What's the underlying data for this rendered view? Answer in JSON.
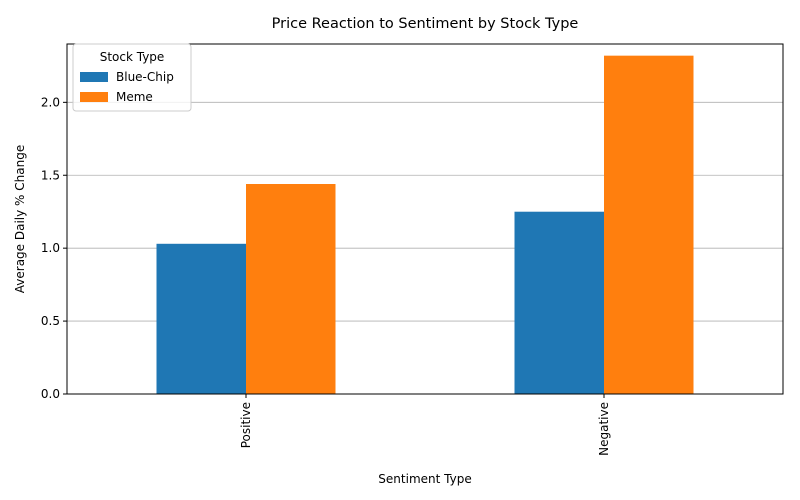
{
  "chart_data": {
    "type": "bar",
    "title": "Price Reaction to Sentiment by Stock Type",
    "xlabel": "Sentiment Type",
    "ylabel": "Average Daily % Change",
    "categories": [
      "Positive",
      "Negative"
    ],
    "series": [
      {
        "name": "Blue-Chip",
        "values": [
          1.03,
          1.25
        ],
        "color": "#1f77b4"
      },
      {
        "name": "Meme",
        "values": [
          1.44,
          2.32
        ],
        "color": "#ff7f0e"
      }
    ],
    "ylim": [
      0,
      2.4
    ],
    "yticks": [
      "0.0",
      "0.5",
      "1.0",
      "1.5",
      "2.0"
    ],
    "ytick_values": [
      0,
      0.5,
      1.0,
      1.5,
      2.0
    ],
    "grid": "y",
    "legend_title": "Stock Type",
    "legend_position": "top-left"
  }
}
